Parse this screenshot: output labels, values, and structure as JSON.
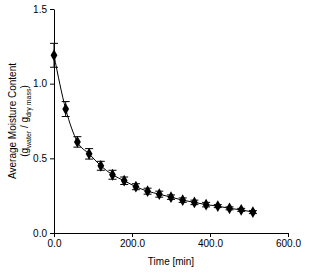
{
  "chart_data": {
    "type": "line",
    "xlabel": "Time [min]",
    "ylabel": [
      "Average Moisture Content",
      [
        "(g",
        "water",
        " / g",
        "dry mass",
        ")"
      ]
    ],
    "x": [
      0,
      30,
      60,
      90,
      120,
      150,
      180,
      210,
      240,
      270,
      300,
      330,
      360,
      390,
      420,
      450,
      480,
      510
    ],
    "series": [
      {
        "color": "#000000",
        "marker": "diamond",
        "line_style": "solid",
        "values": [
          1.19,
          0.83,
          0.61,
          0.53,
          0.45,
          0.39,
          0.35,
          0.31,
          0.28,
          0.26,
          0.24,
          0.22,
          0.205,
          0.19,
          0.18,
          0.165,
          0.155,
          0.14
        ],
        "errors": [
          0.08,
          0.05,
          0.035,
          0.035,
          0.03,
          0.03,
          0.025,
          0.02,
          0.02,
          0.02,
          0.015,
          0.015,
          0.015,
          0.015,
          0.01,
          0.01,
          0.01,
          0.01
        ]
      }
    ],
    "xlim": [
      0,
      600
    ],
    "xticks": [
      {
        "value": 0,
        "label": "0.0"
      },
      {
        "value": 200,
        "label": "200.0"
      },
      {
        "value": 400,
        "label": "400.0"
      },
      {
        "value": 600,
        "label": "600.0"
      }
    ],
    "ylim": [
      0,
      1.5
    ],
    "yticks": [
      {
        "value": 0,
        "label": "0.0"
      },
      0.5,
      {
        "value": 1,
        "label": "1.0"
      },
      1.5
    ],
    "grid": false
  }
}
